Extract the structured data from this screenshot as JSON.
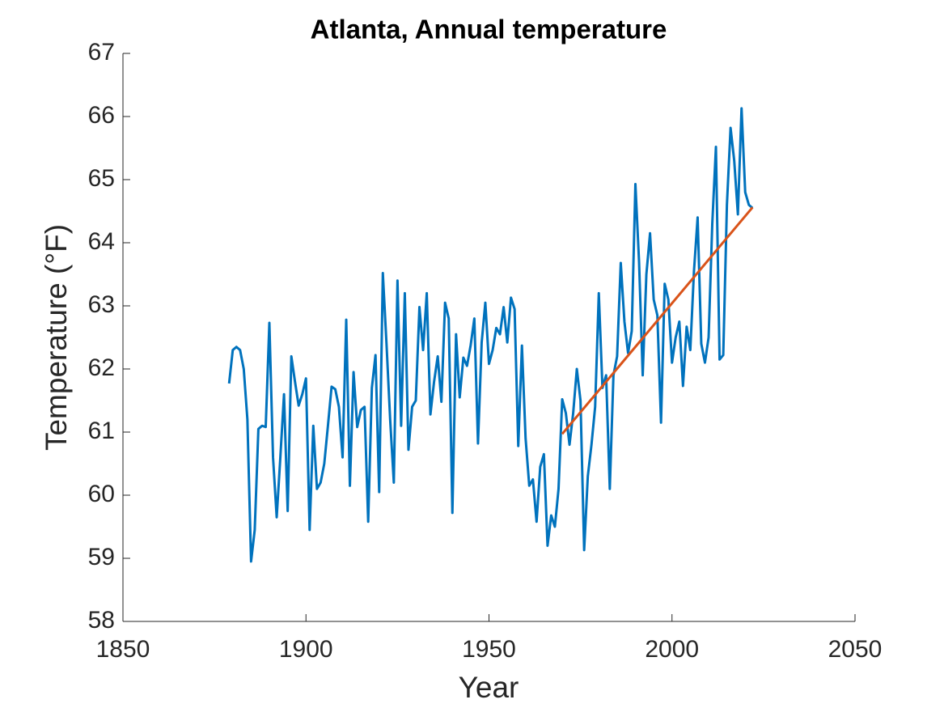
{
  "chart_data": {
    "type": "line",
    "title": "Atlanta, Annual temperature",
    "x_label": "Year",
    "y_label": "Temperature (°F)",
    "xlim": [
      1850,
      2050
    ],
    "xticks": [
      1850,
      1900,
      1950,
      2000,
      2050
    ],
    "ylim": [
      58,
      67
    ],
    "yticks": [
      58,
      59,
      60,
      61,
      62,
      63,
      64,
      65,
      66,
      67
    ],
    "series": [
      {
        "color": "#0072BD",
        "x": [
          1879,
          1880,
          1881,
          1882,
          1883,
          1884,
          1885,
          1886,
          1887,
          1888,
          1889,
          1890,
          1891,
          1892,
          1893,
          1894,
          1895,
          1896,
          1897,
          1898,
          1899,
          1900,
          1901,
          1902,
          1903,
          1904,
          1905,
          1906,
          1907,
          1908,
          1909,
          1910,
          1911,
          1912,
          1913,
          1914,
          1915,
          1916,
          1917,
          1918,
          1919,
          1920,
          1921,
          1922,
          1923,
          1924,
          1925,
          1926,
          1927,
          1928,
          1929,
          1930,
          1931,
          1932,
          1933,
          1934,
          1935,
          1936,
          1937,
          1938,
          1939,
          1940,
          1941,
          1942,
          1943,
          1944,
          1945,
          1946,
          1947,
          1948,
          1949,
          1950,
          1951,
          1952,
          1953,
          1954,
          1955,
          1956,
          1957,
          1958,
          1959,
          1960,
          1961,
          1962,
          1963,
          1964,
          1965,
          1966,
          1967,
          1968,
          1969,
          1970,
          1971,
          1972,
          1973,
          1974,
          1975,
          1976,
          1977,
          1978,
          1979,
          1980,
          1981,
          1982,
          1983,
          1984,
          1985,
          1986,
          1987,
          1988,
          1989,
          1990,
          1991,
          1992,
          1993,
          1994,
          1995,
          1996,
          1997,
          1998,
          1999,
          2000,
          2001,
          2002,
          2003,
          2004,
          2005,
          2006,
          2007,
          2008,
          2009,
          2010,
          2011,
          2012,
          2013,
          2014,
          2015,
          2016,
          2017,
          2018,
          2019,
          2020,
          2021,
          2022
        ],
        "values": [
          61.77,
          62.3,
          62.35,
          62.3,
          62.0,
          61.2,
          58.95,
          59.45,
          61.05,
          61.1,
          61.08,
          62.73,
          60.6,
          59.65,
          60.6,
          61.6,
          59.75,
          62.2,
          61.8,
          61.42,
          61.6,
          61.85,
          59.45,
          61.1,
          60.1,
          60.2,
          60.5,
          61.1,
          61.72,
          61.68,
          61.4,
          60.6,
          62.78,
          60.15,
          61.95,
          61.08,
          61.35,
          61.4,
          59.58,
          61.7,
          62.22,
          60.05,
          63.52,
          62.4,
          61.2,
          60.2,
          63.4,
          61.1,
          63.2,
          60.72,
          61.4,
          61.5,
          62.98,
          62.3,
          63.2,
          61.28,
          61.8,
          62.2,
          61.48,
          63.05,
          62.8,
          59.72,
          62.55,
          61.55,
          62.18,
          62.05,
          62.38,
          62.8,
          60.82,
          62.42,
          63.05,
          62.08,
          62.3,
          62.65,
          62.55,
          62.98,
          62.42,
          63.13,
          62.95,
          60.78,
          62.37,
          60.9,
          60.15,
          60.25,
          59.58,
          60.45,
          60.65,
          59.2,
          59.68,
          59.5,
          60.1,
          61.52,
          61.3,
          60.8,
          61.3,
          62.0,
          61.5,
          59.13,
          60.3,
          60.8,
          61.4,
          63.2,
          61.7,
          61.9,
          60.1,
          61.9,
          62.2,
          63.68,
          62.75,
          62.25,
          62.6,
          64.93,
          63.7,
          61.9,
          63.5,
          64.15,
          63.1,
          62.85,
          61.15,
          63.35,
          63.1,
          62.1,
          62.5,
          62.75,
          61.73,
          62.67,
          62.3,
          63.55,
          64.4,
          62.4,
          62.1,
          62.5,
          64.3,
          65.52,
          62.15,
          62.22,
          64.6,
          65.82,
          65.3,
          64.45,
          66.13,
          64.8,
          64.6,
          64.55
        ]
      },
      {
        "color": "#D95319",
        "x": [
          1970,
          2022
        ],
        "values": [
          60.97,
          64.56
        ]
      }
    ]
  }
}
